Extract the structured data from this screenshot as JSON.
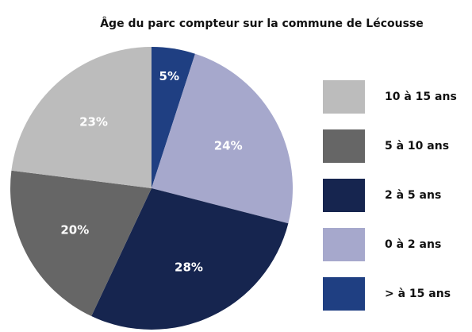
{
  "chart_data": {
    "type": "pie",
    "title": "Âge du parc compteur sur la commune de Lécousse",
    "categories": [
      "10 à 15 ans",
      "5 à 10 ans",
      "2 à 5 ans",
      "0 à 2 ans",
      "> à 15 ans"
    ],
    "values": [
      23,
      20,
      28,
      24,
      5
    ],
    "value_labels": [
      "23%",
      "20%",
      "28%",
      "24%",
      "5%"
    ],
    "colors": [
      "#bcbcbc",
      "#666666",
      "#16254f",
      "#a6a8cc",
      "#1f3f82"
    ],
    "legend": "right"
  }
}
